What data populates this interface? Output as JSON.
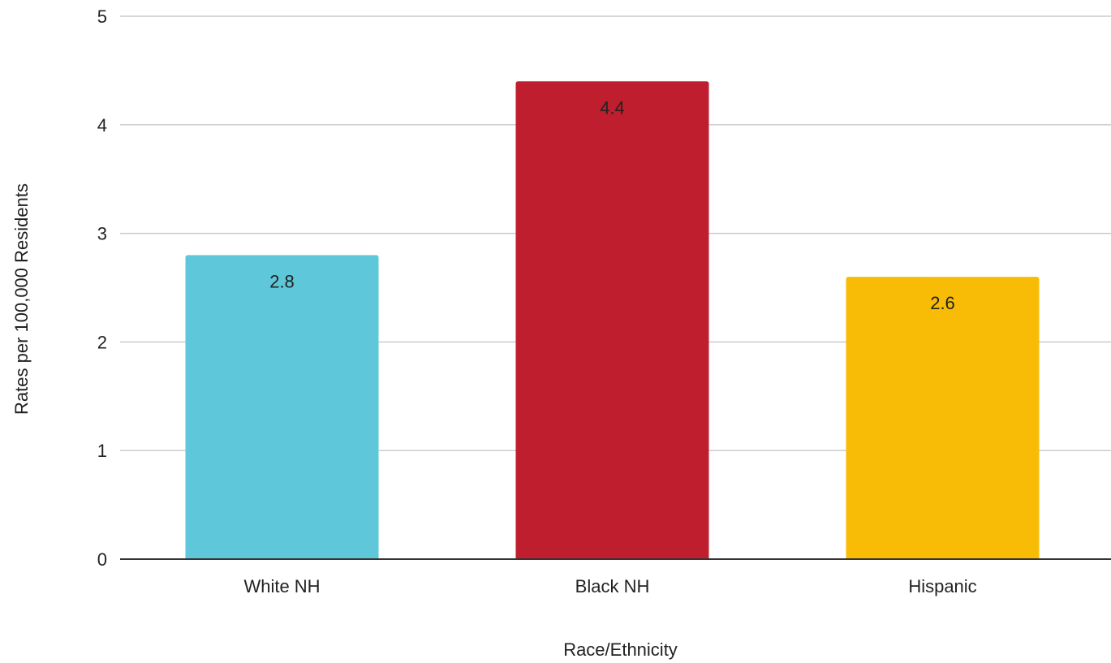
{
  "chart_data": {
    "type": "bar",
    "title": "",
    "xlabel": "Race/Ethnicity",
    "ylabel": "Rates per 100,000 Residents",
    "categories": [
      "White NH",
      "Black NH",
      "Hispanic"
    ],
    "values": [
      2.8,
      4.4,
      2.6
    ],
    "value_labels": [
      "2.8",
      "4.4",
      "2.6"
    ],
    "bar_colors": [
      "#5ec8da",
      "#be1e2d",
      "#f8bc06"
    ],
    "ylim": [
      0,
      5
    ],
    "yticks": [
      0,
      1,
      2,
      3,
      4,
      5
    ],
    "grid": true,
    "legend": "none"
  }
}
